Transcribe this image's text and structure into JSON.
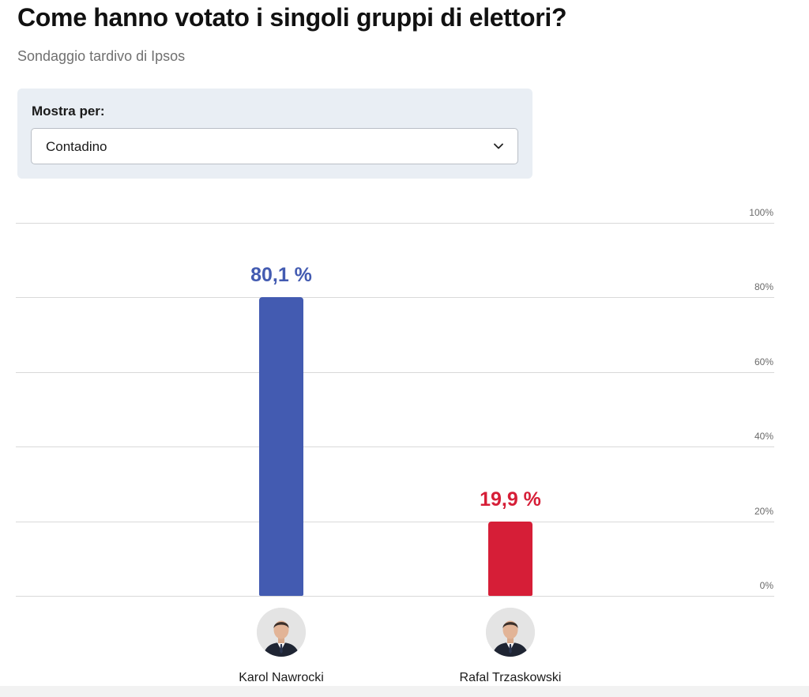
{
  "header": {
    "title": "Come hanno votato i singoli gruppi di elettori?",
    "subtitle": "Sondaggio tardivo di Ipsos"
  },
  "filter": {
    "label": "Mostra per:",
    "selected": "Contadino",
    "icon": "chevron-down-icon"
  },
  "chart_data": {
    "type": "bar",
    "categories": [
      "Karol Nawrocki",
      "Rafal Trzaskowski"
    ],
    "values": [
      80.1,
      19.9
    ],
    "value_labels": [
      "80,1 %",
      "19,9 %"
    ],
    "colors": [
      "#435bb1",
      "#d61e37"
    ],
    "ylim": [
      0,
      100
    ],
    "yticks": [
      0,
      20,
      40,
      60,
      80,
      100
    ],
    "ytick_labels": [
      "0%",
      "20%",
      "40%",
      "60%",
      "80%",
      "100%"
    ],
    "grid": true,
    "axis_side": "right",
    "candidate_icons": [
      "avatar-nawrocki-icon",
      "avatar-trzaskowski-icon"
    ]
  }
}
